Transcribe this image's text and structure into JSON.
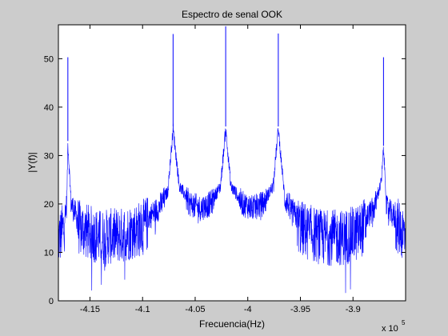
{
  "chart_data": {
    "type": "line",
    "title": "Espectro de senal OOK",
    "xlabel": "Frecuencia(Hz)",
    "ylabel": "|Y(f)|",
    "x_exponent_label": "x 10",
    "x_exponent_power": "5",
    "xlim": [
      -4.18,
      -3.85
    ],
    "ylim": [
      0,
      57
    ],
    "grid": false,
    "x_ticks": [
      -4.15,
      -4.1,
      -4.05,
      -4.0,
      -3.95,
      -3.9
    ],
    "x_tick_labels": [
      "-4.15",
      "-4.1",
      "-4.05",
      "-4",
      "-3.95",
      "-3.9"
    ],
    "y_ticks": [
      0,
      10,
      20,
      30,
      40,
      50
    ],
    "y_tick_labels": [
      "0",
      "10",
      "20",
      "30",
      "40",
      "50"
    ],
    "series_color": "#0000ff",
    "peaks": [
      {
        "x": -4.171,
        "y": 50.3
      },
      {
        "x": -4.071,
        "y": 55.1
      },
      {
        "x": -4.021,
        "y": 56.7
      },
      {
        "x": -3.971,
        "y": 55.2
      },
      {
        "x": -3.871,
        "y": 50.3
      }
    ],
    "envelope": {
      "x": [
        -4.18,
        -4.175,
        -4.172,
        -4.171,
        -4.168,
        -4.16,
        -4.14,
        -4.12,
        -4.1,
        -4.085,
        -4.076,
        -4.071,
        -4.065,
        -4.055,
        -4.045,
        -4.035,
        -4.026,
        -4.021,
        -4.016,
        -4.005,
        -3.995,
        -3.985,
        -3.976,
        -3.971,
        -3.965,
        -3.95,
        -3.93,
        -3.91,
        -3.895,
        -3.88,
        -3.873,
        -3.871,
        -3.868,
        -3.85
      ],
      "y": [
        14.5,
        17,
        21,
        33,
        21,
        17,
        15,
        15.5,
        17,
        20,
        23,
        36,
        24,
        21,
        20,
        21,
        24,
        36,
        24,
        21,
        20,
        21,
        24,
        36,
        22,
        17,
        15,
        15,
        16,
        20,
        25,
        32,
        20,
        15.5
      ]
    }
  }
}
